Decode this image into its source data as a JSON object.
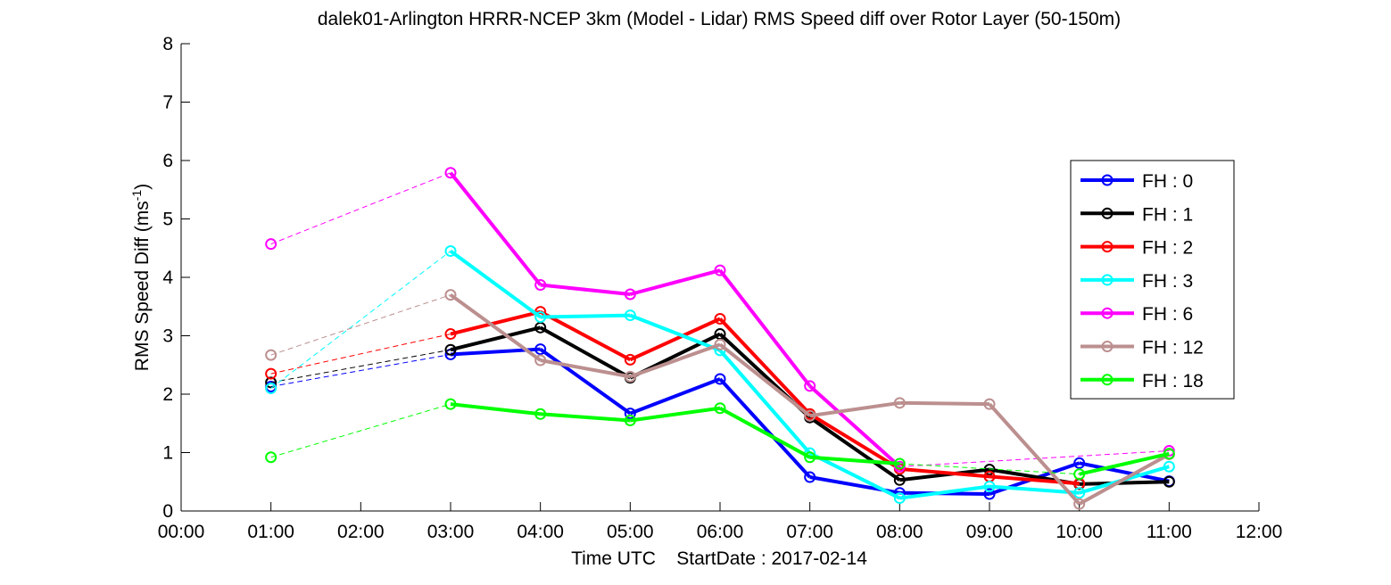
{
  "chart_data": {
    "type": "line",
    "title": "dalek01-Arlington HRRR-NCEP 3km (Model - Lidar) RMS Speed diff over Rotor Layer (50-150m)",
    "xlabel": "Time UTC    StartDate : 2017-02-14",
    "ylabel_main": "RMS Speed Diff (ms",
    "ylabel_sup": "-1",
    "ylabel_close": ")",
    "x_ticks": [
      "00:00",
      "01:00",
      "02:00",
      "03:00",
      "04:00",
      "05:00",
      "06:00",
      "07:00",
      "08:00",
      "09:00",
      "10:00",
      "11:00",
      "12:00"
    ],
    "y_ticks": [
      "0",
      "1",
      "2",
      "3",
      "4",
      "5",
      "6",
      "7",
      "8"
    ],
    "xlim": [
      0,
      12
    ],
    "ylim": [
      0,
      8
    ],
    "grid": false,
    "legend_position": "right",
    "x": [
      1,
      3,
      4,
      5,
      6,
      7,
      8,
      9,
      10,
      11
    ],
    "series": [
      {
        "name": "FH : 0",
        "color": "#0000ff",
        "values": [
          2.13,
          2.68,
          2.77,
          1.67,
          2.26,
          0.58,
          0.31,
          0.29,
          0.82,
          0.51
        ]
      },
      {
        "name": "FH : 1",
        "color": "#000000",
        "values": [
          2.2,
          2.76,
          3.14,
          2.28,
          3.03,
          1.6,
          0.53,
          0.71,
          0.46,
          0.5
        ]
      },
      {
        "name": "FH : 2",
        "color": "#ff0000",
        "values": [
          2.35,
          3.03,
          3.41,
          2.59,
          3.29,
          1.66,
          0.72,
          0.59,
          0.47,
          null
        ]
      },
      {
        "name": "FH : 3",
        "color": "#00ffff",
        "values": [
          2.1,
          4.45,
          3.32,
          3.35,
          2.75,
          0.99,
          0.22,
          0.42,
          0.31,
          0.76
        ]
      },
      {
        "name": "FH : 6",
        "color": "#ff00ff",
        "values": [
          4.57,
          5.79,
          3.87,
          3.71,
          4.12,
          2.14,
          0.76,
          null,
          null,
          1.03
        ]
      },
      {
        "name": "FH : 12",
        "color": "#bc8f8f",
        "values": [
          2.67,
          3.7,
          2.58,
          2.3,
          2.85,
          1.63,
          1.85,
          1.83,
          0.12,
          0.97
        ]
      },
      {
        "name": "FH : 18",
        "color": "#00ff00",
        "values": [
          0.92,
          1.83,
          1.66,
          1.55,
          1.76,
          0.92,
          0.81,
          null,
          0.63,
          0.98
        ]
      }
    ]
  }
}
